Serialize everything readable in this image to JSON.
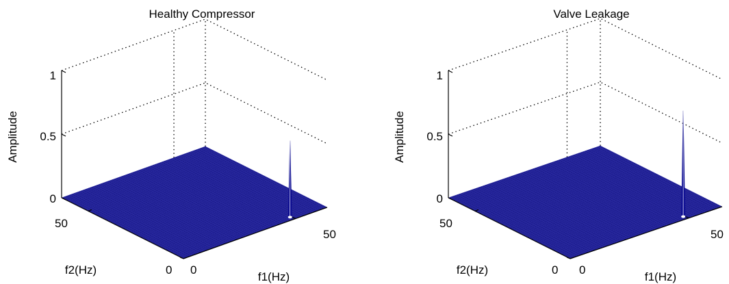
{
  "chart_data": [
    {
      "type": "surface3d",
      "title": "Healthy Compressor",
      "xlabel": "f1(Hz)",
      "ylabel": "f2(Hz)",
      "zlabel": "Amplitude",
      "xlim": [
        0,
        64
      ],
      "ylim": [
        0,
        64
      ],
      "zlim": [
        0,
        1
      ],
      "xticks": [
        "0",
        "50"
      ],
      "yticks": [
        "0",
        "50"
      ],
      "zticks": [
        "0",
        "0.5",
        "1"
      ],
      "surface_color": "#1c1c8c",
      "baseline": 0,
      "peaks": [
        {
          "f1": 50,
          "f2": 3,
          "amplitude": 0.59
        }
      ],
      "grid": true
    },
    {
      "type": "surface3d",
      "title": "Valve Leakage",
      "xlabel": "f1(Hz)",
      "ylabel": "f2(Hz)",
      "zlabel": "Amplitude",
      "xlim": [
        0,
        64
      ],
      "ylim": [
        0,
        64
      ],
      "zlim": [
        0,
        1
      ],
      "xticks": [
        "0",
        "50"
      ],
      "yticks": [
        "0",
        "50"
      ],
      "zticks": [
        "0",
        "0.5",
        "1"
      ],
      "surface_color": "#1c1c8c",
      "baseline": 0,
      "peaks": [
        {
          "f1": 50,
          "f2": 3,
          "amplitude": 0.82
        }
      ],
      "grid": true
    }
  ]
}
